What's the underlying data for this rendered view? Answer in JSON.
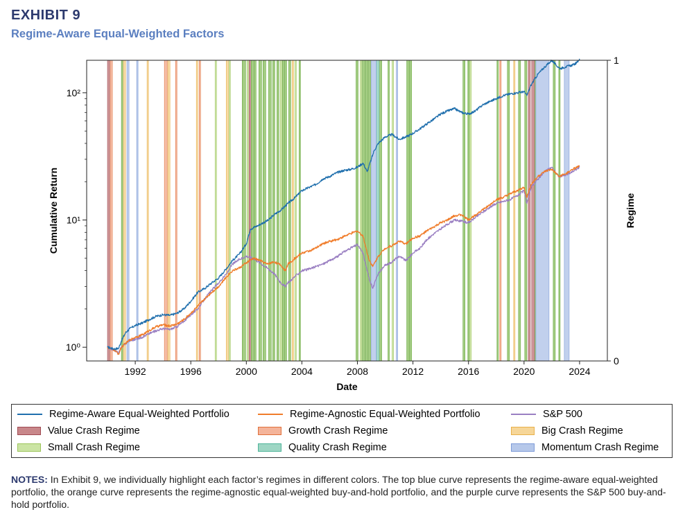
{
  "header": {
    "exhibit": "EXHIBIT 9",
    "subtitle": "Regime-Aware Equal-Weighted Factors"
  },
  "chart_data": {
    "type": "line",
    "xlabel": "Date",
    "ylabel": "Cumulative Return",
    "y2label": "Regime",
    "yscale": "log",
    "xlim": [
      1988.5,
      2026.0
    ],
    "ylim": [
      0.78,
      180
    ],
    "y2lim": [
      0,
      1
    ],
    "x_ticks": [
      1992,
      1996,
      2000,
      2004,
      2008,
      2012,
      2016,
      2020,
      2024
    ],
    "x_tick_labels": [
      "1992",
      "1996",
      "2000",
      "2004",
      "2008",
      "2012",
      "2016",
      "2020",
      "2024"
    ],
    "y_ticks": [
      1,
      10,
      100
    ],
    "y_tick_labels": [
      "10⁰",
      "10¹",
      "10²"
    ],
    "y2_ticks": [
      0,
      1
    ],
    "y2_tick_labels": [
      "0",
      "1"
    ],
    "grid": false,
    "legend_placement": "below",
    "series": [
      {
        "name": "Regime-Aware Equal-Weighted Portfolio",
        "color": "#1f6fad",
        "x": [
          1990.0,
          1990.5,
          1990.8,
          1991.0,
          1991.3,
          1991.6,
          1992.0,
          1992.5,
          1993.0,
          1993.5,
          1994.0,
          1994.5,
          1995.0,
          1995.5,
          1996.0,
          1996.5,
          1997.0,
          1997.5,
          1998.0,
          1998.6,
          1999.0,
          1999.5,
          2000.0,
          2000.3,
          2000.8,
          2001.2,
          2001.6,
          2002.0,
          2002.5,
          2003.0,
          2003.5,
          2004.0,
          2004.5,
          2005.0,
          2005.5,
          2006.0,
          2006.5,
          2007.0,
          2007.5,
          2008.0,
          2008.4,
          2008.7,
          2009.0,
          2009.2,
          2009.5,
          2010.0,
          2010.5,
          2011.0,
          2011.5,
          2012.0,
          2012.5,
          2013.0,
          2013.5,
          2014.0,
          2014.5,
          2015.0,
          2015.5,
          2016.0,
          2016.5,
          2017.0,
          2017.5,
          2018.0,
          2018.5,
          2019.0,
          2019.5,
          2020.0,
          2020.2,
          2020.5,
          2021.0,
          2021.5,
          2022.0,
          2022.3,
          2022.6,
          2023.0,
          2023.5,
          2023.8,
          2024.0
        ],
        "values": [
          1.0,
          0.97,
          0.98,
          1.12,
          1.3,
          1.4,
          1.48,
          1.55,
          1.65,
          1.75,
          1.8,
          1.78,
          1.85,
          2.0,
          2.3,
          2.7,
          2.9,
          3.2,
          3.5,
          4.2,
          4.8,
          5.4,
          6.5,
          8.5,
          9.0,
          9.5,
          10.0,
          11.0,
          12.0,
          13.5,
          15.0,
          17.0,
          18.0,
          19.0,
          21.0,
          22.0,
          23.5,
          24.5,
          25.0,
          26.0,
          28.0,
          24.0,
          30.0,
          35.0,
          40.0,
          45.0,
          47.0,
          43.0,
          45.0,
          48.0,
          52.0,
          57.0,
          62.0,
          68.0,
          72.0,
          75.0,
          70.0,
          68.0,
          72.0,
          80.0,
          85.0,
          90.0,
          95.0,
          98.0,
          100.0,
          102.0,
          95.0,
          115.0,
          140.0,
          160.0,
          180.0,
          165.0,
          155.0,
          160.0,
          165.0,
          172.0,
          185.0
        ]
      },
      {
        "name": "Regime-Agnostic Equal-Weighted Portfolio",
        "color": "#f07c2a",
        "x": [
          1990.0,
          1990.5,
          1990.8,
          1991.0,
          1991.5,
          1992.0,
          1992.5,
          1993.0,
          1993.5,
          1994.0,
          1994.5,
          1995.0,
          1995.5,
          1996.0,
          1996.5,
          1997.0,
          1997.5,
          1998.0,
          1998.6,
          1999.0,
          1999.5,
          2000.0,
          2000.5,
          2001.0,
          2001.5,
          2002.0,
          2002.5,
          2002.8,
          2003.0,
          2003.5,
          2004.0,
          2004.5,
          2005.0,
          2005.5,
          2006.0,
          2006.5,
          2007.0,
          2007.5,
          2008.0,
          2008.4,
          2008.8,
          2009.1,
          2009.5,
          2010.0,
          2010.5,
          2011.0,
          2011.5,
          2012.0,
          2012.5,
          2013.0,
          2013.5,
          2014.0,
          2014.5,
          2015.0,
          2015.5,
          2016.0,
          2016.5,
          2017.0,
          2017.5,
          2018.0,
          2018.5,
          2019.0,
          2019.5,
          2020.0,
          2020.2,
          2020.5,
          2021.0,
          2021.5,
          2022.0,
          2022.5,
          2023.0,
          2023.5,
          2024.0
        ],
        "values": [
          1.0,
          0.95,
          0.88,
          1.0,
          1.12,
          1.2,
          1.25,
          1.35,
          1.45,
          1.5,
          1.47,
          1.52,
          1.65,
          1.85,
          2.1,
          2.4,
          2.7,
          3.0,
          3.6,
          4.0,
          4.2,
          4.6,
          5.0,
          4.8,
          4.5,
          4.7,
          4.4,
          4.0,
          4.5,
          5.0,
          5.5,
          5.7,
          6.0,
          6.5,
          6.8,
          7.0,
          7.4,
          7.8,
          8.2,
          7.5,
          5.0,
          4.3,
          5.2,
          6.0,
          6.3,
          6.8,
          6.5,
          7.2,
          7.5,
          8.2,
          8.8,
          9.5,
          10.0,
          10.8,
          11.0,
          10.0,
          11.0,
          12.0,
          13.0,
          14.5,
          15.0,
          16.0,
          17.0,
          18.0,
          15.0,
          19.0,
          22.0,
          24.0,
          25.0,
          22.0,
          23.0,
          25.0,
          26.5
        ]
      },
      {
        "name": "S&P 500",
        "color": "#9a7fc2",
        "x": [
          1990.0,
          1990.5,
          1990.8,
          1991.0,
          1991.5,
          1992.0,
          1992.5,
          1993.0,
          1993.5,
          1994.0,
          1994.5,
          1995.0,
          1995.5,
          1996.0,
          1996.5,
          1997.0,
          1997.5,
          1998.0,
          1998.6,
          1999.0,
          1999.5,
          2000.0,
          2000.5,
          2001.0,
          2001.5,
          2002.0,
          2002.5,
          2002.8,
          2003.0,
          2003.5,
          2004.0,
          2004.5,
          2005.0,
          2005.5,
          2006.0,
          2006.5,
          2007.0,
          2007.5,
          2008.0,
          2008.4,
          2008.8,
          2009.1,
          2009.5,
          2010.0,
          2010.5,
          2011.0,
          2011.5,
          2012.0,
          2012.5,
          2013.0,
          2013.5,
          2014.0,
          2014.5,
          2015.0,
          2015.5,
          2016.0,
          2016.5,
          2017.0,
          2017.5,
          2018.0,
          2018.5,
          2019.0,
          2019.5,
          2020.0,
          2020.2,
          2020.5,
          2021.0,
          2021.5,
          2022.0,
          2022.5,
          2023.0,
          2023.5,
          2024.0
        ],
        "values": [
          1.0,
          0.95,
          0.9,
          1.0,
          1.12,
          1.15,
          1.2,
          1.28,
          1.35,
          1.4,
          1.38,
          1.45,
          1.6,
          1.8,
          2.0,
          2.4,
          2.8,
          3.2,
          3.8,
          4.5,
          4.9,
          5.2,
          5.0,
          4.6,
          4.2,
          3.8,
          3.2,
          3.0,
          3.2,
          3.6,
          4.0,
          4.1,
          4.3,
          4.5,
          4.8,
          5.1,
          5.6,
          6.0,
          6.4,
          5.5,
          3.6,
          2.9,
          3.8,
          4.4,
          4.7,
          5.2,
          4.8,
          5.5,
          6.0,
          7.0,
          7.8,
          8.5,
          9.3,
          10.0,
          9.8,
          9.5,
          10.5,
          11.5,
          12.5,
          13.5,
          14.0,
          14.5,
          15.5,
          17.0,
          13.5,
          18.0,
          21.0,
          24.0,
          26.0,
          22.0,
          22.5,
          24.0,
          26.0
        ]
      }
    ],
    "regimes": [
      {
        "name": "Value Crash Regime",
        "fill": "#c8878a",
        "edge": "#a04a52",
        "periods": [
          [
            1990.0,
            1990.15
          ],
          [
            2000.2,
            2000.3
          ],
          [
            2020.3,
            2020.45
          ],
          [
            2020.55,
            2020.75
          ]
        ]
      },
      {
        "name": "Growth Crash Regime",
        "fill": "#f4b49a",
        "edge": "#e0703a",
        "periods": [
          [
            1990.2,
            1990.35
          ],
          [
            1994.1,
            1994.3
          ],
          [
            1994.9,
            1995.0
          ],
          [
            1996.6,
            1996.7
          ],
          [
            2018.25,
            2018.35
          ]
        ]
      },
      {
        "name": "Big Crash Regime",
        "fill": "#f6d698",
        "edge": "#e8b04a",
        "periods": [
          [
            1991.15,
            1991.3
          ],
          [
            1992.85,
            1992.95
          ],
          [
            1994.35,
            1994.5
          ],
          [
            1996.4,
            1996.5
          ],
          [
            1998.55,
            1998.7
          ],
          [
            2003.3,
            2003.4
          ],
          [
            2019.25,
            2019.35
          ]
        ]
      },
      {
        "name": "Small Crash Regime",
        "fill": "#cbe4a4",
        "edge": "#9cc45a",
        "periods": [
          [
            1997.75,
            1997.85
          ],
          [
            1998.75,
            1998.85
          ],
          [
            2000.05,
            2000.15
          ],
          [
            2002.45,
            2002.55
          ],
          [
            2003.5,
            2003.6
          ],
          [
            2008.2,
            2008.3
          ],
          [
            2010.5,
            2010.6
          ],
          [
            2016.1,
            2016.2
          ]
        ]
      },
      {
        "name": "Quality Crash Regime",
        "fill": "#9ed6c4",
        "edge": "#4eb49a",
        "periods": [
          [
            2009.4,
            2009.55
          ]
        ]
      },
      {
        "name": "Momentum Crash Regime",
        "fill": "#b6c8ea",
        "edge": "#7d9bd8",
        "periods": [
          [
            1991.4,
            1991.55
          ],
          [
            1992.1,
            1992.2
          ],
          [
            2009.0,
            2009.35
          ],
          [
            2010.8,
            2010.9
          ],
          [
            2020.85,
            2021.8
          ],
          [
            2022.9,
            2023.25
          ]
        ]
      }
    ],
    "annotation_bands": [
      [
        1991.0,
        1991.1
      ],
      [
        1999.7,
        1999.95
      ],
      [
        2000.35,
        2000.5
      ],
      [
        2000.55,
        2000.7
      ],
      [
        2000.9,
        2001.1
      ],
      [
        2001.2,
        2001.4
      ],
      [
        2001.6,
        2001.8
      ],
      [
        2001.9,
        2002.05
      ],
      [
        2002.2,
        2002.35
      ],
      [
        2002.6,
        2002.7
      ],
      [
        2002.75,
        2002.9
      ],
      [
        2003.05,
        2003.2
      ],
      [
        2003.8,
        2003.9
      ],
      [
        2007.9,
        2008.05
      ],
      [
        2008.35,
        2008.55
      ],
      [
        2008.6,
        2008.75
      ],
      [
        2008.8,
        2008.95
      ],
      [
        2009.6,
        2009.75
      ],
      [
        2010.2,
        2010.3
      ],
      [
        2011.55,
        2011.75
      ],
      [
        2011.8,
        2011.9
      ],
      [
        2015.6,
        2015.75
      ],
      [
        2015.95,
        2016.05
      ],
      [
        2018.05,
        2018.15
      ],
      [
        2018.8,
        2018.95
      ],
      [
        2019.6,
        2019.75
      ],
      [
        2020.05,
        2020.2
      ],
      [
        2020.75,
        2020.85
      ],
      [
        2022.1,
        2022.25
      ],
      [
        2022.5,
        2022.6
      ]
    ]
  },
  "legend": {
    "line_items": [
      {
        "label": "Regime-Aware Equal-Weighted Portfolio",
        "color": "#1f6fad"
      },
      {
        "label": "Regime-Agnostic Equal-Weighted Portfolio",
        "color": "#f07c2a"
      },
      {
        "label": "S&P 500",
        "color": "#9a7fc2"
      }
    ],
    "patch_items": [
      {
        "label": "Value Crash Regime",
        "fill": "#c8878a",
        "edge": "#a04a52"
      },
      {
        "label": "Growth Crash Regime",
        "fill": "#f4b49a",
        "edge": "#e0703a"
      },
      {
        "label": "Big Crash Regime",
        "fill": "#f6d698",
        "edge": "#e8b04a"
      },
      {
        "label": "Small Crash Regime",
        "fill": "#cbe4a4",
        "edge": "#9cc45a"
      },
      {
        "label": "Quality Crash Regime",
        "fill": "#9ed6c4",
        "edge": "#4eb49a"
      },
      {
        "label": "Momentum Crash Regime",
        "fill": "#b6c8ea",
        "edge": "#7d9bd8"
      }
    ]
  },
  "notes": {
    "label": "NOTES:",
    "text": " In Exhibit 9, we individually highlight each factor’s regimes in different colors. The top blue curve represents the regime-aware equal-weighted portfolio, the orange curve represents the regime-agnostic equal-weighted buy-and-hold portfolio, and the purple curve represents the S&P 500 buy-and-hold portfolio."
  }
}
